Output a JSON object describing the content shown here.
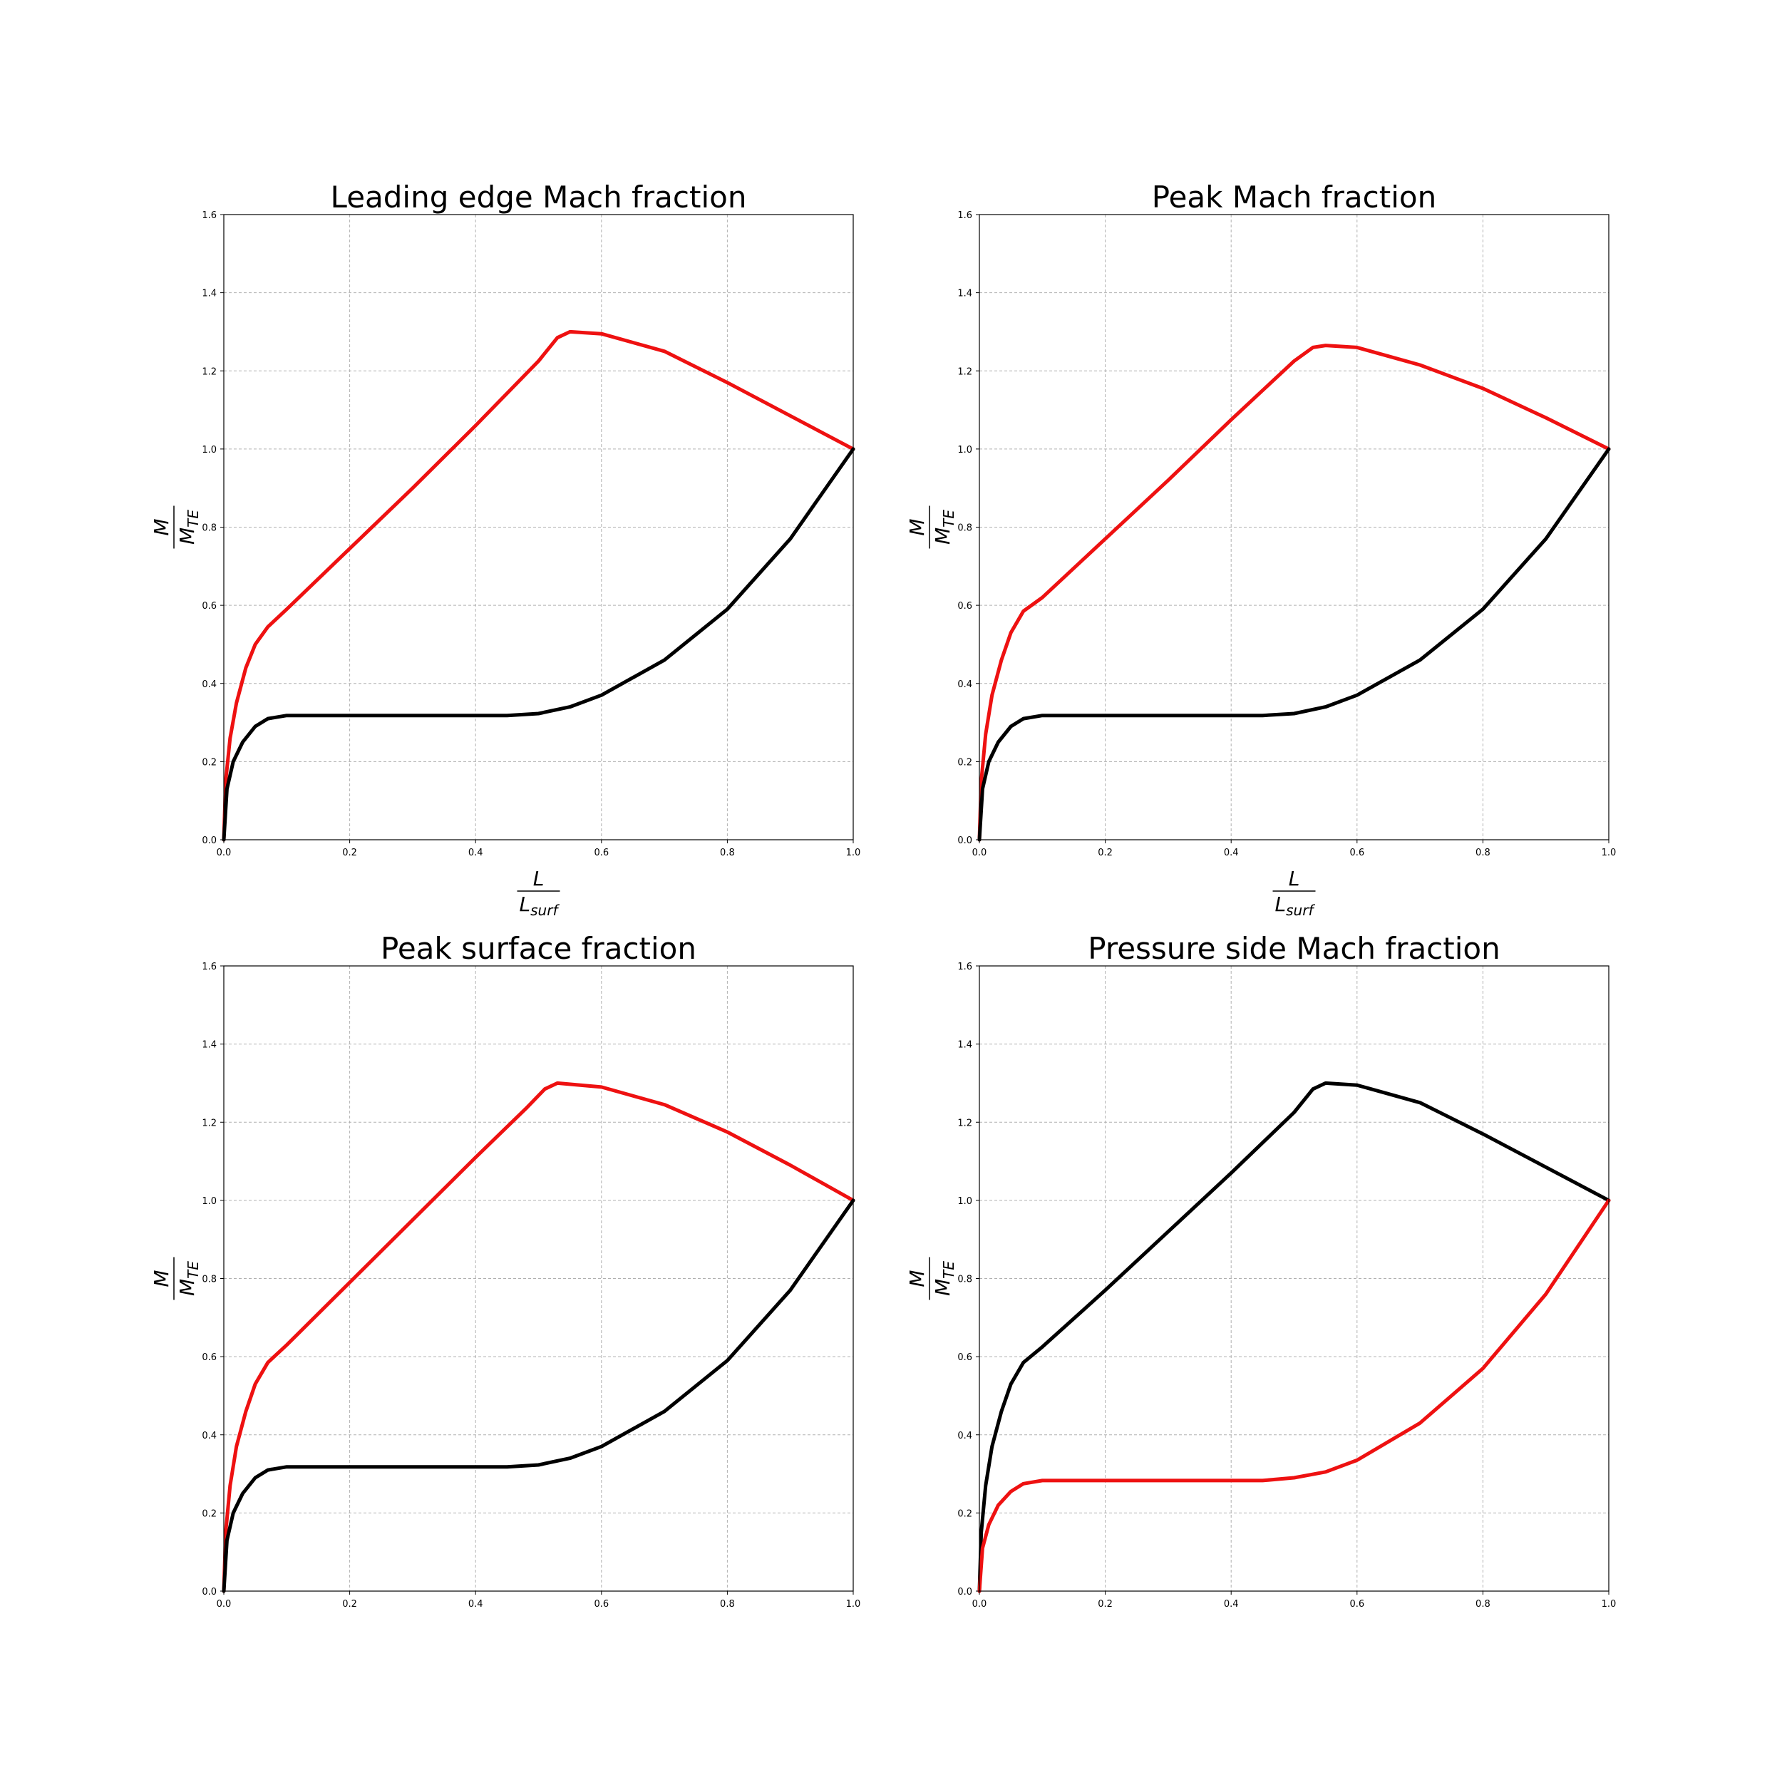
{
  "chart_data": [
    {
      "type": "line",
      "title": "Leading edge Mach fraction",
      "xlabel": {
        "numerator": "L",
        "denominator": "L",
        "denominator_sub": "surf"
      },
      "ylabel": {
        "numerator": "M",
        "denominator": "M",
        "denominator_sub": "TE"
      },
      "xlim": [
        0,
        1.0
      ],
      "ylim": [
        0,
        1.6
      ],
      "xticks": [
        "0.0",
        "0.2",
        "0.4",
        "0.6",
        "0.8",
        "1.0"
      ],
      "yticks": [
        "0.0",
        "0.2",
        "0.4",
        "0.6",
        "0.8",
        "1.0",
        "1.2",
        "1.4",
        "1.6"
      ],
      "grid": true,
      "series": [
        {
          "color": "#ee1111",
          "x": [
            0,
            0.003,
            0.01,
            0.02,
            0.035,
            0.05,
            0.07,
            0.1,
            0.2,
            0.3,
            0.4,
            0.5,
            0.53,
            0.55,
            0.6,
            0.7,
            0.8,
            0.9,
            1.0
          ],
          "y": [
            0,
            0.15,
            0.26,
            0.35,
            0.44,
            0.5,
            0.545,
            0.59,
            0.745,
            0.9,
            1.06,
            1.225,
            1.285,
            1.3,
            1.295,
            1.25,
            1.17,
            1.085,
            1.0
          ]
        },
        {
          "color": "#000000",
          "x": [
            0,
            0.005,
            0.015,
            0.03,
            0.05,
            0.07,
            0.1,
            0.2,
            0.3,
            0.45,
            0.5,
            0.55,
            0.6,
            0.7,
            0.8,
            0.9,
            1.0
          ],
          "y": [
            0,
            0.13,
            0.2,
            0.25,
            0.29,
            0.31,
            0.318,
            0.318,
            0.318,
            0.318,
            0.323,
            0.34,
            0.37,
            0.46,
            0.59,
            0.77,
            1.0
          ]
        }
      ]
    },
    {
      "type": "line",
      "title": "Peak Mach fraction",
      "xlabel": {
        "numerator": "L",
        "denominator": "L",
        "denominator_sub": "surf"
      },
      "ylabel": {
        "numerator": "M",
        "denominator": "M",
        "denominator_sub": "TE"
      },
      "xlim": [
        0,
        1.0
      ],
      "ylim": [
        0,
        1.6
      ],
      "xticks": [
        "0.0",
        "0.2",
        "0.4",
        "0.6",
        "0.8",
        "1.0"
      ],
      "yticks": [
        "0.0",
        "0.2",
        "0.4",
        "0.6",
        "0.8",
        "1.0",
        "1.2",
        "1.4",
        "1.6"
      ],
      "grid": true,
      "series": [
        {
          "color": "#ee1111",
          "x": [
            0,
            0.003,
            0.01,
            0.02,
            0.035,
            0.05,
            0.07,
            0.1,
            0.2,
            0.3,
            0.4,
            0.5,
            0.53,
            0.55,
            0.6,
            0.7,
            0.8,
            0.9,
            1.0
          ],
          "y": [
            0,
            0.15,
            0.27,
            0.37,
            0.46,
            0.53,
            0.585,
            0.62,
            0.77,
            0.92,
            1.075,
            1.225,
            1.26,
            1.265,
            1.26,
            1.215,
            1.155,
            1.08,
            1.0
          ]
        },
        {
          "color": "#000000",
          "x": [
            0,
            0.005,
            0.015,
            0.03,
            0.05,
            0.07,
            0.1,
            0.2,
            0.3,
            0.45,
            0.5,
            0.55,
            0.6,
            0.7,
            0.8,
            0.9,
            1.0
          ],
          "y": [
            0,
            0.13,
            0.2,
            0.25,
            0.29,
            0.31,
            0.318,
            0.318,
            0.318,
            0.318,
            0.323,
            0.34,
            0.37,
            0.46,
            0.59,
            0.77,
            1.0
          ]
        }
      ]
    },
    {
      "type": "line",
      "title": "Peak surface fraction",
      "ylabel": {
        "numerator": "M",
        "denominator": "M",
        "denominator_sub": "TE"
      },
      "xlim": [
        0,
        1.0
      ],
      "ylim": [
        0,
        1.6
      ],
      "xticks": [
        "0.0",
        "0.2",
        "0.4",
        "0.6",
        "0.8",
        "1.0"
      ],
      "yticks": [
        "0.0",
        "0.2",
        "0.4",
        "0.6",
        "0.8",
        "1.0",
        "1.2",
        "1.4",
        "1.6"
      ],
      "grid": true,
      "series": [
        {
          "color": "#ee1111",
          "x": [
            0,
            0.003,
            0.01,
            0.02,
            0.035,
            0.05,
            0.07,
            0.1,
            0.2,
            0.3,
            0.4,
            0.48,
            0.51,
            0.53,
            0.6,
            0.7,
            0.8,
            0.9,
            1.0
          ],
          "y": [
            0,
            0.15,
            0.27,
            0.37,
            0.46,
            0.53,
            0.585,
            0.63,
            0.79,
            0.95,
            1.11,
            1.235,
            1.285,
            1.3,
            1.29,
            1.245,
            1.175,
            1.09,
            1.0
          ]
        },
        {
          "color": "#000000",
          "x": [
            0,
            0.005,
            0.015,
            0.03,
            0.05,
            0.07,
            0.1,
            0.2,
            0.3,
            0.45,
            0.5,
            0.55,
            0.6,
            0.7,
            0.8,
            0.9,
            1.0
          ],
          "y": [
            0,
            0.13,
            0.2,
            0.25,
            0.29,
            0.31,
            0.318,
            0.318,
            0.318,
            0.318,
            0.323,
            0.34,
            0.37,
            0.46,
            0.59,
            0.77,
            1.0
          ]
        }
      ]
    },
    {
      "type": "line",
      "title": "Pressure side Mach fraction",
      "ylabel": {
        "numerator": "M",
        "denominator": "M",
        "denominator_sub": "TE"
      },
      "xlim": [
        0,
        1.0
      ],
      "ylim": [
        0,
        1.6
      ],
      "xticks": [
        "0.0",
        "0.2",
        "0.4",
        "0.6",
        "0.8",
        "1.0"
      ],
      "yticks": [
        "0.0",
        "0.2",
        "0.4",
        "0.6",
        "0.8",
        "1.0",
        "1.2",
        "1.4",
        "1.6"
      ],
      "grid": true,
      "series": [
        {
          "color": "#000000",
          "x": [
            0,
            0.003,
            0.01,
            0.02,
            0.035,
            0.05,
            0.07,
            0.1,
            0.2,
            0.3,
            0.4,
            0.5,
            0.53,
            0.55,
            0.6,
            0.7,
            0.8,
            0.9,
            1.0
          ],
          "y": [
            0,
            0.15,
            0.27,
            0.37,
            0.46,
            0.53,
            0.585,
            0.625,
            0.77,
            0.92,
            1.07,
            1.225,
            1.285,
            1.3,
            1.295,
            1.25,
            1.17,
            1.085,
            1.0
          ]
        },
        {
          "color": "#ee1111",
          "x": [
            0,
            0.005,
            0.015,
            0.03,
            0.05,
            0.07,
            0.1,
            0.2,
            0.3,
            0.45,
            0.5,
            0.55,
            0.6,
            0.7,
            0.8,
            0.9,
            1.0
          ],
          "y": [
            0,
            0.11,
            0.17,
            0.22,
            0.255,
            0.275,
            0.283,
            0.283,
            0.283,
            0.283,
            0.29,
            0.305,
            0.335,
            0.43,
            0.57,
            0.76,
            1.0
          ]
        }
      ]
    }
  ]
}
